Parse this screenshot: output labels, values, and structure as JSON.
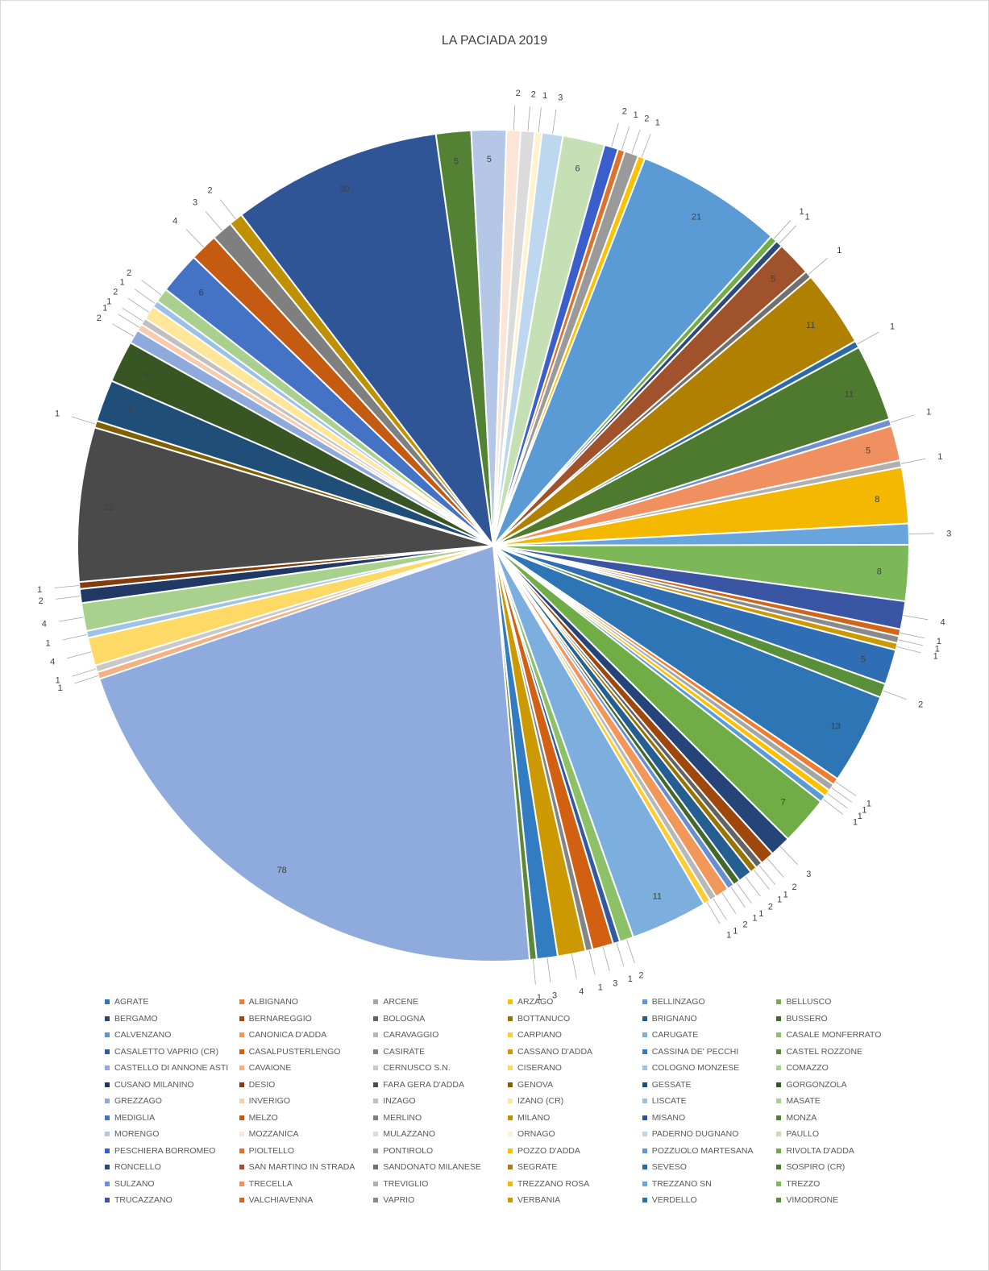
{
  "chart_data": {
    "type": "pie",
    "title": "LA PACIADA 2019",
    "categories": [
      "AGRATE",
      "ALBIGNANO",
      "ARCENE",
      "ARZAGO",
      "BELLINZAGO",
      "BELLUSCO",
      "BERGAMO",
      "BERNAREGGIO",
      "BOLOGNA",
      "BOTTANUCO",
      "BRIGNANO",
      "BUSSERO",
      "CALVENZANO",
      "CANONICA D'ADDA",
      "CARAVAGGIO",
      "CARPIANO",
      "CARUGATE",
      "CASALE MONFERRATO",
      "CASALETTO VAPRIO (CR)",
      "CASALPUSTERLENGO",
      "CASIRATE",
      "CASSANO D'ADDA",
      "CASSINA DE' PECCHI",
      "CASTEL ROZZONE",
      "CASTELLO DI ANNONE ASTI",
      "CAVAIONE",
      "CERNUSCO S.N.",
      "CISERANO",
      "COLOGNO MONZESE",
      "COMAZZO",
      "CUSANO MILANINO",
      "DESIO",
      "FARA GERA D'ADDA",
      "GENOVA",
      "GESSATE",
      "GORGONZOLA",
      "GREZZAGO",
      "INVERIGO",
      "INZAGO",
      "IZANO (CR)",
      "LISCATE",
      "MASATE",
      "MEDIGLIA",
      "MELZO",
      "MERLINO",
      "MILANO",
      "MISANO",
      "MONZA",
      "MORENGO",
      "MOZZANICA",
      "MULAZZANO",
      "ORNAGO",
      "PADERNO DUGNANO",
      "PAULLO",
      "PESCHIERA BORROMEO",
      "PIOLTELLO",
      "PONTIROLO",
      "POZZO D'ADDA",
      "POZZUOLO MARTESANA",
      "RIVOLTA D'ADDA",
      "RONCELLO",
      "SAN MARTINO IN STRADA",
      "SANDONATO MILANESE",
      "SEGRATE",
      "SEVESO",
      "SOSPIRO (CR)",
      "SULZANO",
      "TRECELLA",
      "TREVIGLIO",
      "TREZZANO ROSA",
      "TREZZANO SN",
      "TREZZO",
      "TRUCAZZANO",
      "VALCHIAVENNA",
      "VAPRIO",
      "VERBANIA",
      "VERDELLO",
      "VIMODRONE"
    ],
    "values": [
      13,
      1,
      1,
      1,
      1,
      7,
      3,
      2,
      1,
      1,
      2,
      1,
      1,
      2,
      1,
      1,
      11,
      2,
      1,
      3,
      1,
      4,
      3,
      1,
      78,
      1,
      1,
      4,
      1,
      4,
      2,
      1,
      22,
      1,
      6,
      6,
      2,
      1,
      1,
      2,
      1,
      2,
      6,
      4,
      3,
      2,
      30,
      5,
      5,
      2,
      2,
      1,
      3,
      6,
      2,
      1,
      2,
      1,
      21,
      1,
      1,
      5,
      1,
      11,
      1,
      11,
      1,
      5,
      1,
      8,
      3,
      8,
      4,
      1,
      1,
      1,
      5,
      2
    ],
    "colors": [
      "#2e75b6",
      "#ed7d31",
      "#a5a5a5",
      "#ffc000",
      "#5b9bd5",
      "#70ad47",
      "#264478",
      "#9e480e",
      "#636363",
      "#997300",
      "#255e91",
      "#43682b",
      "#698ed0",
      "#f1975a",
      "#b7b7b7",
      "#ffcd33",
      "#7cafdd",
      "#8cc168",
      "#335aa1",
      "#d26012",
      "#848484",
      "#cc9a00",
      "#327dc2",
      "#5a8a39",
      "#8faadc",
      "#f4b183",
      "#c9c9c9",
      "#ffd966",
      "#9dc3e6",
      "#a9d18e",
      "#203864",
      "#843c0c",
      "#4a4a4a",
      "#806000",
      "#1f4e79",
      "#375623",
      "#8ea9db",
      "#f8cbad",
      "#c0c0c0",
      "#ffe699",
      "#9bc2e6",
      "#a9d08e",
      "#4472c4",
      "#c55a11",
      "#7f7f7f",
      "#bf9000",
      "#2f5597",
      "#548235",
      "#b4c7e7",
      "#fbe5d6",
      "#dbdbdb",
      "#fff2cc",
      "#bdd7ee",
      "#c5e0b4",
      "#3a5fcd",
      "#e0712c",
      "#9a9a9a",
      "#ffc000",
      "#5b9bd5",
      "#70ad47",
      "#2e4a7d",
      "#a0522d",
      "#707070",
      "#b08000",
      "#2a6aa8",
      "#4d7a2f",
      "#6f8fd3",
      "#f09060",
      "#b0b0b0",
      "#f5b800",
      "#69a5dc",
      "#7cb857",
      "#3955a3",
      "#d3651b",
      "#8a8a8a",
      "#cc9a00",
      "#2f6db5",
      "#5a8f3a"
    ],
    "legend_position": "bottom"
  }
}
